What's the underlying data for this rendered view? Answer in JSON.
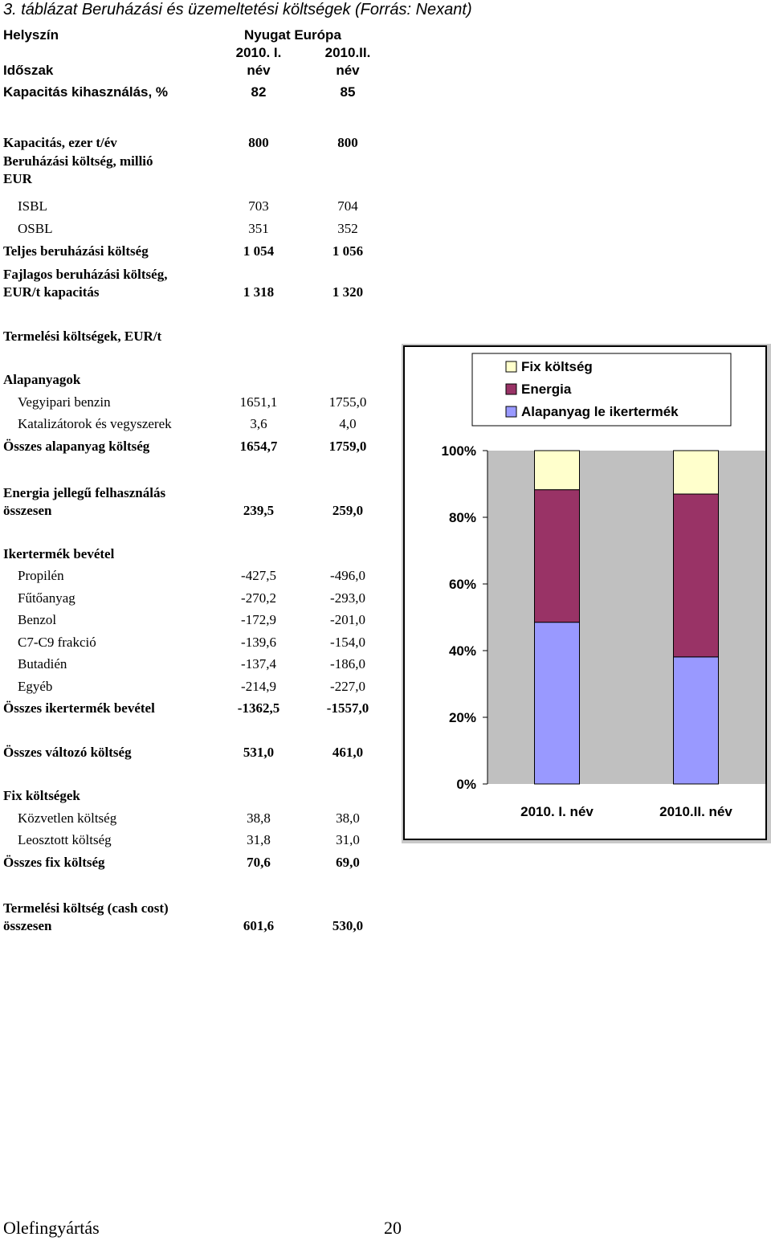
{
  "caption": "3. táblázat Beruházási és üzemeltetési költségek (Forrás: Nexant)",
  "header": {
    "location_label": "Helyszín",
    "region": "Nyugat Európa",
    "col1_line1": "2010. I.",
    "col1_line2": "név",
    "col2_line1": "2010.II.",
    "col2_line2": "név",
    "period_label": "Időszak"
  },
  "rows": {
    "capacity_util": {
      "label": "Kapacitás kihasználás, %",
      "v1": "82",
      "v2": "85"
    },
    "capacity": {
      "label": "Kapacitás, ezer t/év",
      "v1": "800",
      "v2": "800"
    },
    "invest_cost_line1": "Beruházási költség, millió",
    "invest_cost_line2": "EUR",
    "isbl": {
      "label": "ISBL",
      "v1": "703",
      "v2": "704"
    },
    "osbl": {
      "label": "OSBL",
      "v1": "351",
      "v2": "352"
    },
    "total_invest": {
      "label": "Teljes beruházási költség",
      "v1": "1 054",
      "v2": "1 056"
    },
    "specific_line1": "Fajlagos beruházási költség,",
    "specific": {
      "label": "EUR/t kapacitás",
      "v1": "1 318",
      "v2": "1 320"
    },
    "production_costs": "Termelési költségek, EUR/t",
    "raw_materials": "Alapanyagok",
    "naphtha": {
      "label": "Vegyipari benzin",
      "v1": "1651,1",
      "v2": "1755,0"
    },
    "catalysts": {
      "label": "Katalizátorok és vegyszerek",
      "v1": "3,6",
      "v2": "4,0"
    },
    "total_raw": {
      "label": "Összes alapanyag költség",
      "v1": "1654,7",
      "v2": "1759,0"
    },
    "energy_line1": "Energia jellegű felhasználás",
    "energy": {
      "label": "összesen",
      "v1": "239,5",
      "v2": "259,0"
    },
    "byproduct_income": "Ikertermék bevétel",
    "propylene": {
      "label": "Propilén",
      "v1": "-427,5",
      "v2": "-496,0"
    },
    "fuel_oil": {
      "label": "Fűtőanyag",
      "v1": "-270,2",
      "v2": "-293,0"
    },
    "benzene": {
      "label": "Benzol",
      "v1": "-172,9",
      "v2": "-201,0"
    },
    "c7c9": {
      "label": "C7-C9 frakció",
      "v1": "-139,6",
      "v2": "-154,0"
    },
    "butadiene": {
      "label": "Butadién",
      "v1": "-137,4",
      "v2": "-186,0"
    },
    "other": {
      "label": "Egyéb",
      "v1": "-214,9",
      "v2": "-227,0"
    },
    "total_byproduct": {
      "label": "Összes ikertermék bevétel",
      "v1": "-1362,5",
      "v2": "-1557,0"
    },
    "total_variable": {
      "label": "Összes változó költség",
      "v1": "531,0",
      "v2": "461,0"
    },
    "fixed_costs": "Fix költségek",
    "direct": {
      "label": "Közvetlen költség",
      "v1": "38,8",
      "v2": "38,0"
    },
    "allocated": {
      "label": "Leosztott költség",
      "v1": "31,8",
      "v2": "31,0"
    },
    "total_fixed": {
      "label": "Összes fix költség",
      "v1": "70,6",
      "v2": "69,0"
    },
    "cash_cost_line1": "Termelési költség (cash cost)",
    "cash_cost": {
      "label": "összesen",
      "v1": "601,6",
      "v2": "530,0"
    }
  },
  "footer": {
    "left": "Olefingyártás",
    "page": "20"
  },
  "chart_data": {
    "type": "bar",
    "stacked": "percent",
    "categories": [
      "2010. I. név",
      "2010.II. név"
    ],
    "series": [
      {
        "name": "Alapanyag le ikertermék",
        "color": "#9999ff",
        "values": [
          292.2,
          202.0
        ]
      },
      {
        "name": "Energia",
        "color": "#993366",
        "values": [
          239.5,
          259.0
        ]
      },
      {
        "name": "Fix költség",
        "color": "#ffffcc",
        "values": [
          70.6,
          69.0
        ]
      }
    ],
    "legend_order": [
      "Fix költség",
      "Energia",
      "Alapanyag le ikertermék"
    ],
    "y_ticks": [
      "0%",
      "20%",
      "40%",
      "60%",
      "80%",
      "100%"
    ],
    "ylim": [
      0,
      100
    ],
    "plot_background": "#c0c0c0",
    "legend_position": "top-right",
    "grid": false
  }
}
